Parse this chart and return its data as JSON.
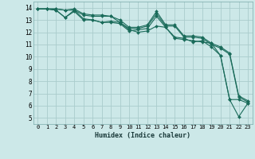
{
  "title": "",
  "xlabel": "Humidex (Indice chaleur)",
  "xlim": [
    -0.5,
    23.5
  ],
  "ylim": [
    4.5,
    14.5
  ],
  "xticks": [
    0,
    1,
    2,
    3,
    4,
    5,
    6,
    7,
    8,
    9,
    10,
    11,
    12,
    13,
    14,
    15,
    16,
    17,
    18,
    19,
    20,
    21,
    22,
    23
  ],
  "yticks": [
    5,
    6,
    7,
    8,
    9,
    10,
    11,
    12,
    13,
    14
  ],
  "bg_color": "#cce8e8",
  "grid_color": "#aacccc",
  "line_color": "#1a6b5a",
  "series": [
    {
      "x": [
        0,
        1,
        2,
        3,
        4,
        5,
        6,
        7,
        8,
        9,
        10,
        11,
        12,
        13,
        14,
        15,
        16,
        17,
        18,
        19,
        20,
        21,
        22,
        23
      ],
      "y": [
        13.9,
        13.9,
        13.8,
        13.2,
        13.7,
        13.0,
        13.0,
        12.8,
        12.8,
        12.7,
        12.1,
        12.2,
        12.3,
        13.3,
        12.4,
        11.5,
        11.4,
        11.3,
        11.2,
        11.1,
        10.1,
        6.5,
        5.1,
        6.2
      ]
    },
    {
      "x": [
        0,
        1,
        2,
        3,
        4,
        5,
        6,
        7,
        8,
        9,
        10,
        11,
        12,
        13,
        14,
        15,
        16,
        17,
        18,
        19,
        20,
        21,
        22,
        23
      ],
      "y": [
        13.9,
        13.9,
        13.8,
        13.2,
        13.8,
        13.1,
        13.0,
        12.8,
        12.9,
        12.8,
        12.2,
        12.0,
        12.1,
        12.5,
        12.4,
        11.6,
        11.5,
        11.2,
        11.3,
        10.8,
        10.1,
        6.5,
        6.5,
        6.2
      ]
    },
    {
      "x": [
        0,
        1,
        2,
        3,
        4,
        5,
        6,
        7,
        8,
        9,
        10,
        11,
        12,
        13,
        14,
        15,
        16,
        17,
        18,
        19,
        20,
        21,
        22,
        23
      ],
      "y": [
        13.9,
        13.9,
        13.9,
        13.8,
        13.8,
        13.4,
        13.3,
        13.3,
        13.3,
        12.8,
        12.3,
        12.3,
        12.5,
        13.5,
        12.5,
        12.5,
        11.6,
        11.6,
        11.5,
        11.0,
        10.7,
        10.2,
        6.7,
        6.3
      ]
    },
    {
      "x": [
        0,
        1,
        2,
        3,
        4,
        5,
        6,
        7,
        8,
        9,
        10,
        11,
        12,
        13,
        14,
        15,
        16,
        17,
        18,
        19,
        20,
        21,
        22,
        23
      ],
      "y": [
        13.9,
        13.9,
        13.9,
        13.8,
        13.9,
        13.5,
        13.4,
        13.4,
        13.3,
        13.0,
        12.4,
        12.4,
        12.6,
        13.7,
        12.6,
        12.6,
        11.7,
        11.7,
        11.6,
        11.1,
        10.8,
        10.3,
        6.8,
        6.4
      ]
    }
  ]
}
